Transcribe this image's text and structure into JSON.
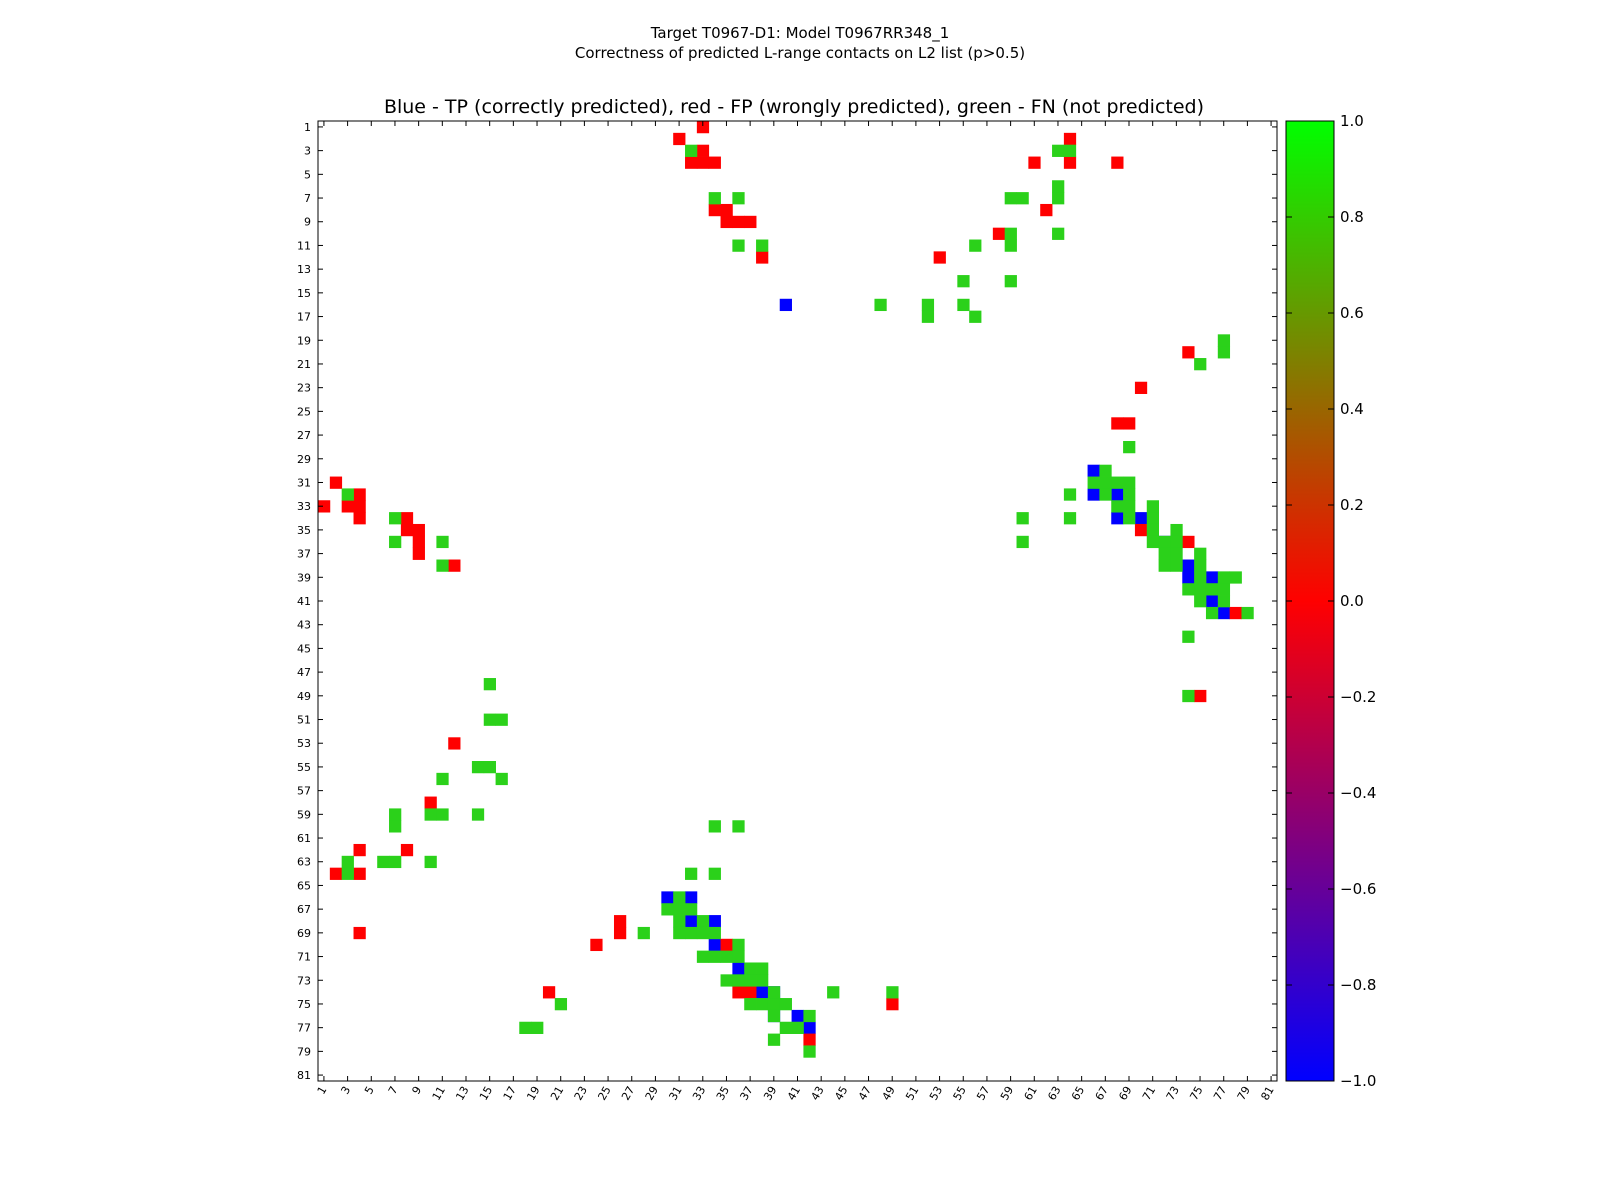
{
  "chart_data": {
    "type": "heatmap",
    "title": "Target T0967-D1: Model T0967RR348_1",
    "title_line2": "Correctness of predicted L-range contacts on L2 list (p>0.5)",
    "subtitle": "Blue - TP (correctly predicted), red - FP (wrongly predicted), green - FN (not predicted)",
    "x_range": [
      1,
      81
    ],
    "y_range": [
      1,
      81
    ],
    "x_ticks": [
      "1",
      "3",
      "5",
      "7",
      "9",
      "11",
      "13",
      "15",
      "17",
      "19",
      "21",
      "23",
      "25",
      "27",
      "29",
      "31",
      "33",
      "35",
      "37",
      "39",
      "41",
      "43",
      "45",
      "47",
      "49",
      "51",
      "53",
      "55",
      "57",
      "59",
      "61",
      "63",
      "65",
      "67",
      "69",
      "71",
      "73",
      "75",
      "77",
      "79",
      "81"
    ],
    "y_ticks": [
      "1",
      "3",
      "5",
      "7",
      "9",
      "11",
      "13",
      "15",
      "17",
      "19",
      "21",
      "23",
      "25",
      "27",
      "29",
      "31",
      "33",
      "35",
      "37",
      "39",
      "41",
      "43",
      "45",
      "47",
      "49",
      "51",
      "53",
      "55",
      "57",
      "59",
      "61",
      "63",
      "65",
      "67",
      "69",
      "71",
      "73",
      "75",
      "77",
      "79",
      "81"
    ],
    "grid": false,
    "colorbar": {
      "range": [
        -1.0,
        1.0
      ],
      "tick_labels": [
        "1.0",
        "0.8",
        "0.6",
        "0.4",
        "0.2",
        "0.0",
        "−0.2",
        "−0.4",
        "−0.6",
        "−0.8",
        "−1.0"
      ],
      "tick_values": [
        1.0,
        0.8,
        0.6,
        0.4,
        0.2,
        0.0,
        -0.2,
        -0.4,
        -0.6,
        -0.8,
        -1.0
      ],
      "colors": {
        "low": "#0000ff",
        "mid": "#ff0000",
        "high": "#00ff00"
      }
    },
    "series": [
      {
        "value": -1,
        "color": "#0000ff",
        "cells": [
          [
            40,
            16
          ],
          [
            66,
            30
          ],
          [
            66,
            32
          ],
          [
            68,
            32
          ],
          [
            68,
            34
          ],
          [
            70,
            34
          ],
          [
            72,
            36
          ],
          [
            74,
            38
          ],
          [
            74,
            39
          ],
          [
            76,
            39
          ],
          [
            76,
            41
          ],
          [
            77,
            42
          ],
          [
            30,
            66
          ],
          [
            32,
            66
          ],
          [
            32,
            68
          ],
          [
            34,
            68
          ],
          [
            34,
            70
          ],
          [
            36,
            72
          ],
          [
            38,
            74
          ],
          [
            39,
            74
          ],
          [
            39,
            76
          ],
          [
            41,
            76
          ],
          [
            42,
            77
          ]
        ]
      },
      {
        "value": 0,
        "color": "#ff0000",
        "cells": [
          [
            33,
            1
          ],
          [
            31,
            2
          ],
          [
            64,
            2
          ],
          [
            33,
            3
          ],
          [
            32,
            4
          ],
          [
            33,
            4
          ],
          [
            34,
            4
          ],
          [
            61,
            4
          ],
          [
            64,
            4
          ],
          [
            68,
            4
          ],
          [
            62,
            8
          ],
          [
            34,
            8
          ],
          [
            35,
            8
          ],
          [
            35,
            9
          ],
          [
            36,
            9
          ],
          [
            37,
            9
          ],
          [
            58,
            10
          ],
          [
            38,
            12
          ],
          [
            53,
            12
          ],
          [
            74,
            20
          ],
          [
            70,
            23
          ],
          [
            68,
            26
          ],
          [
            69,
            26
          ],
          [
            70,
            35
          ],
          [
            74,
            36
          ],
          [
            78,
            42
          ],
          [
            75,
            49
          ],
          [
            2,
            31
          ],
          [
            4,
            32
          ],
          [
            3,
            33
          ],
          [
            4,
            33
          ],
          [
            1,
            33
          ],
          [
            4,
            34
          ],
          [
            8,
            34
          ],
          [
            8,
            35
          ],
          [
            9,
            35
          ],
          [
            9,
            36
          ],
          [
            9,
            37
          ],
          [
            12,
            38
          ],
          [
            12,
            53
          ],
          [
            10,
            58
          ],
          [
            4,
            62
          ],
          [
            8,
            62
          ],
          [
            2,
            64
          ],
          [
            4,
            64
          ],
          [
            4,
            69
          ],
          [
            26,
            68
          ],
          [
            26,
            69
          ],
          [
            24,
            70
          ],
          [
            35,
            70
          ],
          [
            20,
            74
          ],
          [
            36,
            74
          ],
          [
            37,
            74
          ],
          [
            49,
            75
          ],
          [
            42,
            78
          ]
        ]
      },
      {
        "value": 1,
        "color": "#2bd11a",
        "cells": [
          [
            32,
            3
          ],
          [
            63,
            3
          ],
          [
            64,
            3
          ],
          [
            63,
            6
          ],
          [
            63,
            7
          ],
          [
            34,
            7
          ],
          [
            36,
            7
          ],
          [
            59,
            7
          ],
          [
            60,
            7
          ],
          [
            59,
            10
          ],
          [
            36,
            11
          ],
          [
            38,
            11
          ],
          [
            56,
            11
          ],
          [
            59,
            11
          ],
          [
            63,
            10
          ],
          [
            55,
            14
          ],
          [
            59,
            14
          ],
          [
            48,
            16
          ],
          [
            52,
            16
          ],
          [
            55,
            16
          ],
          [
            52,
            17
          ],
          [
            56,
            17
          ],
          [
            77,
            19
          ],
          [
            77,
            20
          ],
          [
            75,
            21
          ],
          [
            69,
            28
          ],
          [
            67,
            30
          ],
          [
            66,
            31
          ],
          [
            67,
            31
          ],
          [
            68,
            31
          ],
          [
            69,
            31
          ],
          [
            64,
            32
          ],
          [
            67,
            32
          ],
          [
            69,
            32
          ],
          [
            68,
            33
          ],
          [
            69,
            33
          ],
          [
            71,
            33
          ],
          [
            60,
            34
          ],
          [
            64,
            34
          ],
          [
            69,
            34
          ],
          [
            71,
            34
          ],
          [
            71,
            35
          ],
          [
            73,
            35
          ],
          [
            60,
            36
          ],
          [
            71,
            36
          ],
          [
            72,
            36
          ],
          [
            73,
            36
          ],
          [
            72,
            37
          ],
          [
            73,
            37
          ],
          [
            75,
            37
          ],
          [
            72,
            38
          ],
          [
            73,
            38
          ],
          [
            75,
            38
          ],
          [
            75,
            39
          ],
          [
            77,
            39
          ],
          [
            78,
            39
          ],
          [
            74,
            40
          ],
          [
            75,
            40
          ],
          [
            76,
            40
          ],
          [
            77,
            40
          ],
          [
            75,
            41
          ],
          [
            77,
            41
          ],
          [
            76,
            42
          ],
          [
            79,
            42
          ],
          [
            74,
            44
          ],
          [
            74,
            49
          ],
          [
            3,
            32
          ],
          [
            7,
            34
          ],
          [
            7,
            36
          ],
          [
            11,
            36
          ],
          [
            11,
            38
          ],
          [
            15,
            48
          ],
          [
            15,
            51
          ],
          [
            16,
            51
          ],
          [
            14,
            55
          ],
          [
            15,
            55
          ],
          [
            11,
            56
          ],
          [
            16,
            56
          ],
          [
            7,
            59
          ],
          [
            10,
            59
          ],
          [
            11,
            59
          ],
          [
            14,
            59
          ],
          [
            7,
            60
          ],
          [
            34,
            60
          ],
          [
            36,
            60
          ],
          [
            3,
            63
          ],
          [
            6,
            63
          ],
          [
            7,
            63
          ],
          [
            10,
            63
          ],
          [
            3,
            64
          ],
          [
            32,
            64
          ],
          [
            34,
            64
          ],
          [
            31,
            66
          ],
          [
            30,
            67
          ],
          [
            31,
            67
          ],
          [
            32,
            67
          ],
          [
            31,
            68
          ],
          [
            33,
            68
          ],
          [
            28,
            69
          ],
          [
            31,
            69
          ],
          [
            32,
            69
          ],
          [
            33,
            69
          ],
          [
            34,
            69
          ],
          [
            36,
            70
          ],
          [
            33,
            71
          ],
          [
            34,
            71
          ],
          [
            35,
            71
          ],
          [
            36,
            71
          ],
          [
            37,
            72
          ],
          [
            38,
            72
          ],
          [
            35,
            73
          ],
          [
            36,
            73
          ],
          [
            37,
            73
          ],
          [
            38,
            73
          ],
          [
            39,
            74
          ],
          [
            44,
            74
          ],
          [
            49,
            74
          ],
          [
            21,
            75
          ],
          [
            37,
            75
          ],
          [
            38,
            75
          ],
          [
            39,
            75
          ],
          [
            40,
            75
          ],
          [
            39,
            76
          ],
          [
            42,
            76
          ],
          [
            18,
            77
          ],
          [
            19,
            77
          ],
          [
            40,
            77
          ],
          [
            41,
            77
          ],
          [
            39,
            78
          ],
          [
            42,
            79
          ]
        ]
      }
    ]
  }
}
